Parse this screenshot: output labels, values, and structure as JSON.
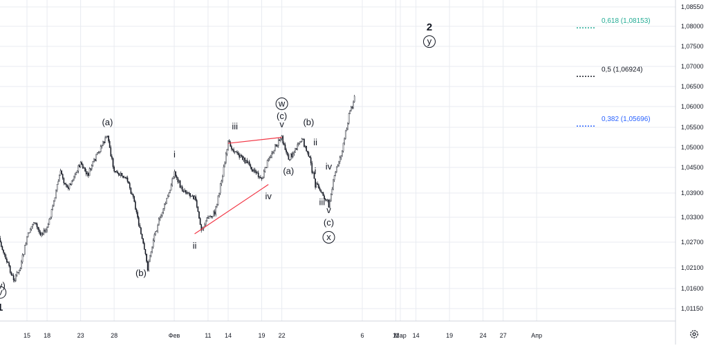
{
  "chart_data": {
    "type": "candlestick",
    "title": "",
    "xlabel": "",
    "ylabel": "",
    "ylim": [
      1.0095,
      1.0855
    ],
    "y_ticks": [
      "1,08550",
      "1,08000",
      "1,07500",
      "1,07000",
      "1,06500",
      "1,06000",
      "1,05500",
      "1,05000",
      "1,04500",
      "1,03900",
      "1,03300",
      "1,02700",
      "1,02100",
      "1,01600",
      "1,01150"
    ],
    "y_tick_values": [
      1.0855,
      1.08,
      1.075,
      1.07,
      1.065,
      1.06,
      1.055,
      1.05,
      1.045,
      1.039,
      1.033,
      1.027,
      1.021,
      1.016,
      1.0115
    ],
    "x_ticks": [
      "15",
      "18",
      "23",
      "28",
      "Фев",
      "11",
      "14",
      "19",
      "22",
      "Мар",
      "6",
      "11",
      "14",
      "19",
      "24",
      "27",
      "Апр"
    ],
    "price_path": [
      {
        "x": "10 Jan",
        "y": 1.031
      },
      {
        "x": "13 Jan",
        "y": 1.018
      },
      {
        "x": "14 Jan",
        "y": 1.021
      },
      {
        "x": "15 Jan",
        "y": 1.028
      },
      {
        "x": "16 Jan",
        "y": 1.032
      },
      {
        "x": "17 Jan",
        "y": 1.029
      },
      {
        "x": "18 Jan",
        "y": 1.03
      },
      {
        "x": "20 Jan",
        "y": 1.044
      },
      {
        "x": "21 Jan",
        "y": 1.04
      },
      {
        "x": "23 Jan",
        "y": 1.046
      },
      {
        "x": "24 Jan",
        "y": 1.043
      },
      {
        "x": "26 Jan",
        "y": 1.05
      },
      {
        "x": "27 Jan",
        "y": 1.053
      },
      {
        "x": "28 Jan",
        "y": 1.044
      },
      {
        "x": "30 Jan",
        "y": 1.042
      },
      {
        "x": "31 Jan",
        "y": 1.037
      },
      {
        "x": "2 Feb",
        "y": 1.021
      },
      {
        "x": "3 Feb",
        "y": 1.029
      },
      {
        "x": "5 Feb",
        "y": 1.038
      },
      {
        "x": "6 Feb",
        "y": 1.044
      },
      {
        "x": "7 Feb",
        "y": 1.04
      },
      {
        "x": "9 Feb",
        "y": 1.038
      },
      {
        "x": "10 Feb",
        "y": 1.03
      },
      {
        "x": "11 Feb",
        "y": 1.033
      },
      {
        "x": "12 Feb",
        "y": 1.034
      },
      {
        "x": "13 Feb",
        "y": 1.042
      },
      {
        "x": "14 Feb",
        "y": 1.051
      },
      {
        "x": "15 Feb",
        "y": 1.049
      },
      {
        "x": "17 Feb",
        "y": 1.046
      },
      {
        "x": "19 Feb",
        "y": 1.042
      },
      {
        "x": "20 Feb",
        "y": 1.047
      },
      {
        "x": "21 Feb",
        "y": 1.05
      },
      {
        "x": "22 Feb",
        "y": 1.0525
      },
      {
        "x": "23 Feb",
        "y": 1.047
      },
      {
        "x": "25 Feb",
        "y": 1.052
      },
      {
        "x": "26 Feb",
        "y": 1.048
      },
      {
        "x": "27 Feb",
        "y": 1.041
      },
      {
        "x": "28 Feb",
        "y": 1.039
      },
      {
        "x": "1 Mar",
        "y": 1.036
      },
      {
        "x": "2 Mar",
        "y": 1.044
      },
      {
        "x": "3 Mar",
        "y": 1.049
      },
      {
        "x": "4 Mar",
        "y": 1.058
      },
      {
        "x": "5 Mar",
        "y": 1.063
      }
    ],
    "trend_lines": [
      {
        "from": {
          "x": "14 Feb",
          "y": 1.051
        },
        "to": {
          "x": "22 Feb",
          "y": 1.0525
        }
      },
      {
        "from": {
          "x": "9 Feb",
          "y": 1.029
        },
        "to": {
          "x": "20 Feb",
          "y": 1.041
        }
      }
    ],
    "fib_levels": [
      {
        "ratio": "0,618",
        "value": 1.08153,
        "label": "0,618 (1,08153)",
        "color": "#22ab94"
      },
      {
        "ratio": "0,5",
        "value": 1.06924,
        "label": "0,5 (1,06924)",
        "color": "#131722"
      },
      {
        "ratio": "0,382",
        "value": 1.05696,
        "label": "0,382 (1,05696)",
        "color": "#2962ff"
      }
    ],
    "wave_labels": [
      {
        "text": "(v)",
        "x": "11 Jan",
        "y": 1.016
      },
      {
        "text": "v",
        "x": "11 Jan",
        "y": 1.0145,
        "circled": true
      },
      {
        "text": "1",
        "x": "11 Jan",
        "y": 1.011,
        "big": true
      },
      {
        "text": "(a)",
        "x": "27 Jan",
        "y": 1.0555
      },
      {
        "text": "(b)",
        "x": "1 Feb",
        "y": 1.019
      },
      {
        "text": "i",
        "x": "6 Feb",
        "y": 1.0475
      },
      {
        "text": "ii",
        "x": "9 Feb",
        "y": 1.0255
      },
      {
        "text": "iii",
        "x": "15 Feb",
        "y": 1.0545
      },
      {
        "text": "iv",
        "x": "20 Feb",
        "y": 1.0375
      },
      {
        "text": "w",
        "x": "22 Feb",
        "y": 1.06
      },
      {
        "text": "(c)",
        "x": "22 Feb",
        "y": 1.057
      },
      {
        "text": "v",
        "x": "22 Feb",
        "y": 1.055
      },
      {
        "text": "(a)",
        "x": "23 Feb",
        "y": 1.0435
      },
      {
        "text": "(b)",
        "x": "26 Feb",
        "y": 1.0555
      },
      {
        "text": "ii",
        "x": "27 Feb",
        "y": 1.0505
      },
      {
        "text": "i",
        "x": "27 Feb",
        "y": 1.0435
      },
      {
        "text": "iv",
        "x": "1 Mar",
        "y": 1.0445
      },
      {
        "text": "iii",
        "x": "28 Feb",
        "y": 1.036
      },
      {
        "text": "v",
        "x": "1 Mar",
        "y": 1.034
      },
      {
        "text": "(c)",
        "x": "1 Mar",
        "y": 1.031
      },
      {
        "text": "x",
        "x": "1 Mar",
        "y": 1.0275
      },
      {
        "text": "2",
        "x": "16 Mar",
        "y": 1.079,
        "big": true
      },
      {
        "text": "y",
        "x": "16 Mar",
        "y": 1.0755
      }
    ]
  },
  "ui": {
    "settings_icon": "gear-icon",
    "colors": {
      "grid": "#e8ebf0",
      "axis_line": "#d1d4dc",
      "text": "#131722",
      "trend_line": "#f23645",
      "candle": "#131722"
    }
  }
}
